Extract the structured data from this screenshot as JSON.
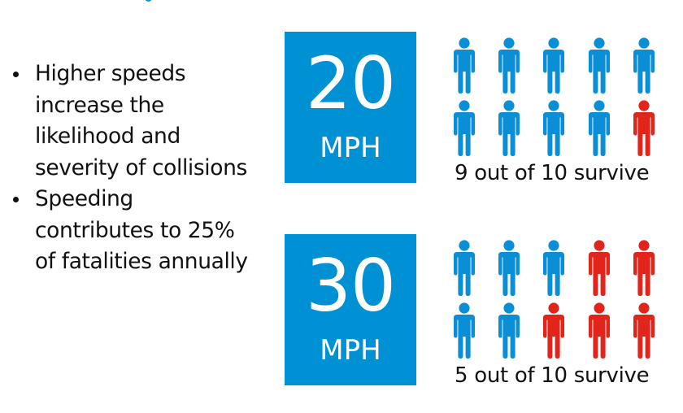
{
  "colors": {
    "accent_blue": "#0090d4",
    "survivor_blue": "#0a8fd6",
    "fatality_red": "#e1251b",
    "text": "#111111",
    "background": "#ffffff"
  },
  "bullets": [
    {
      "lines": [
        "Higher speeds",
        "increase the",
        "likelihood and",
        "severity of collisions"
      ]
    },
    {
      "lines": [
        "Speeding",
        "contributes to 25%",
        "of fatalities annually"
      ]
    }
  ],
  "panels": [
    {
      "speed_value": "20",
      "speed_unit": "MPH",
      "icon": "person-icon",
      "icons": [
        "blue",
        "blue",
        "blue",
        "blue",
        "blue",
        "blue",
        "blue",
        "blue",
        "blue",
        "red"
      ],
      "caption": "9 out of 10 survive"
    },
    {
      "speed_value": "30",
      "speed_unit": "MPH",
      "icon": "person-icon",
      "icons": [
        "blue",
        "blue",
        "blue",
        "red",
        "red",
        "blue",
        "blue",
        "red",
        "red",
        "red"
      ],
      "caption": "5 out of 10 survive"
    }
  ]
}
